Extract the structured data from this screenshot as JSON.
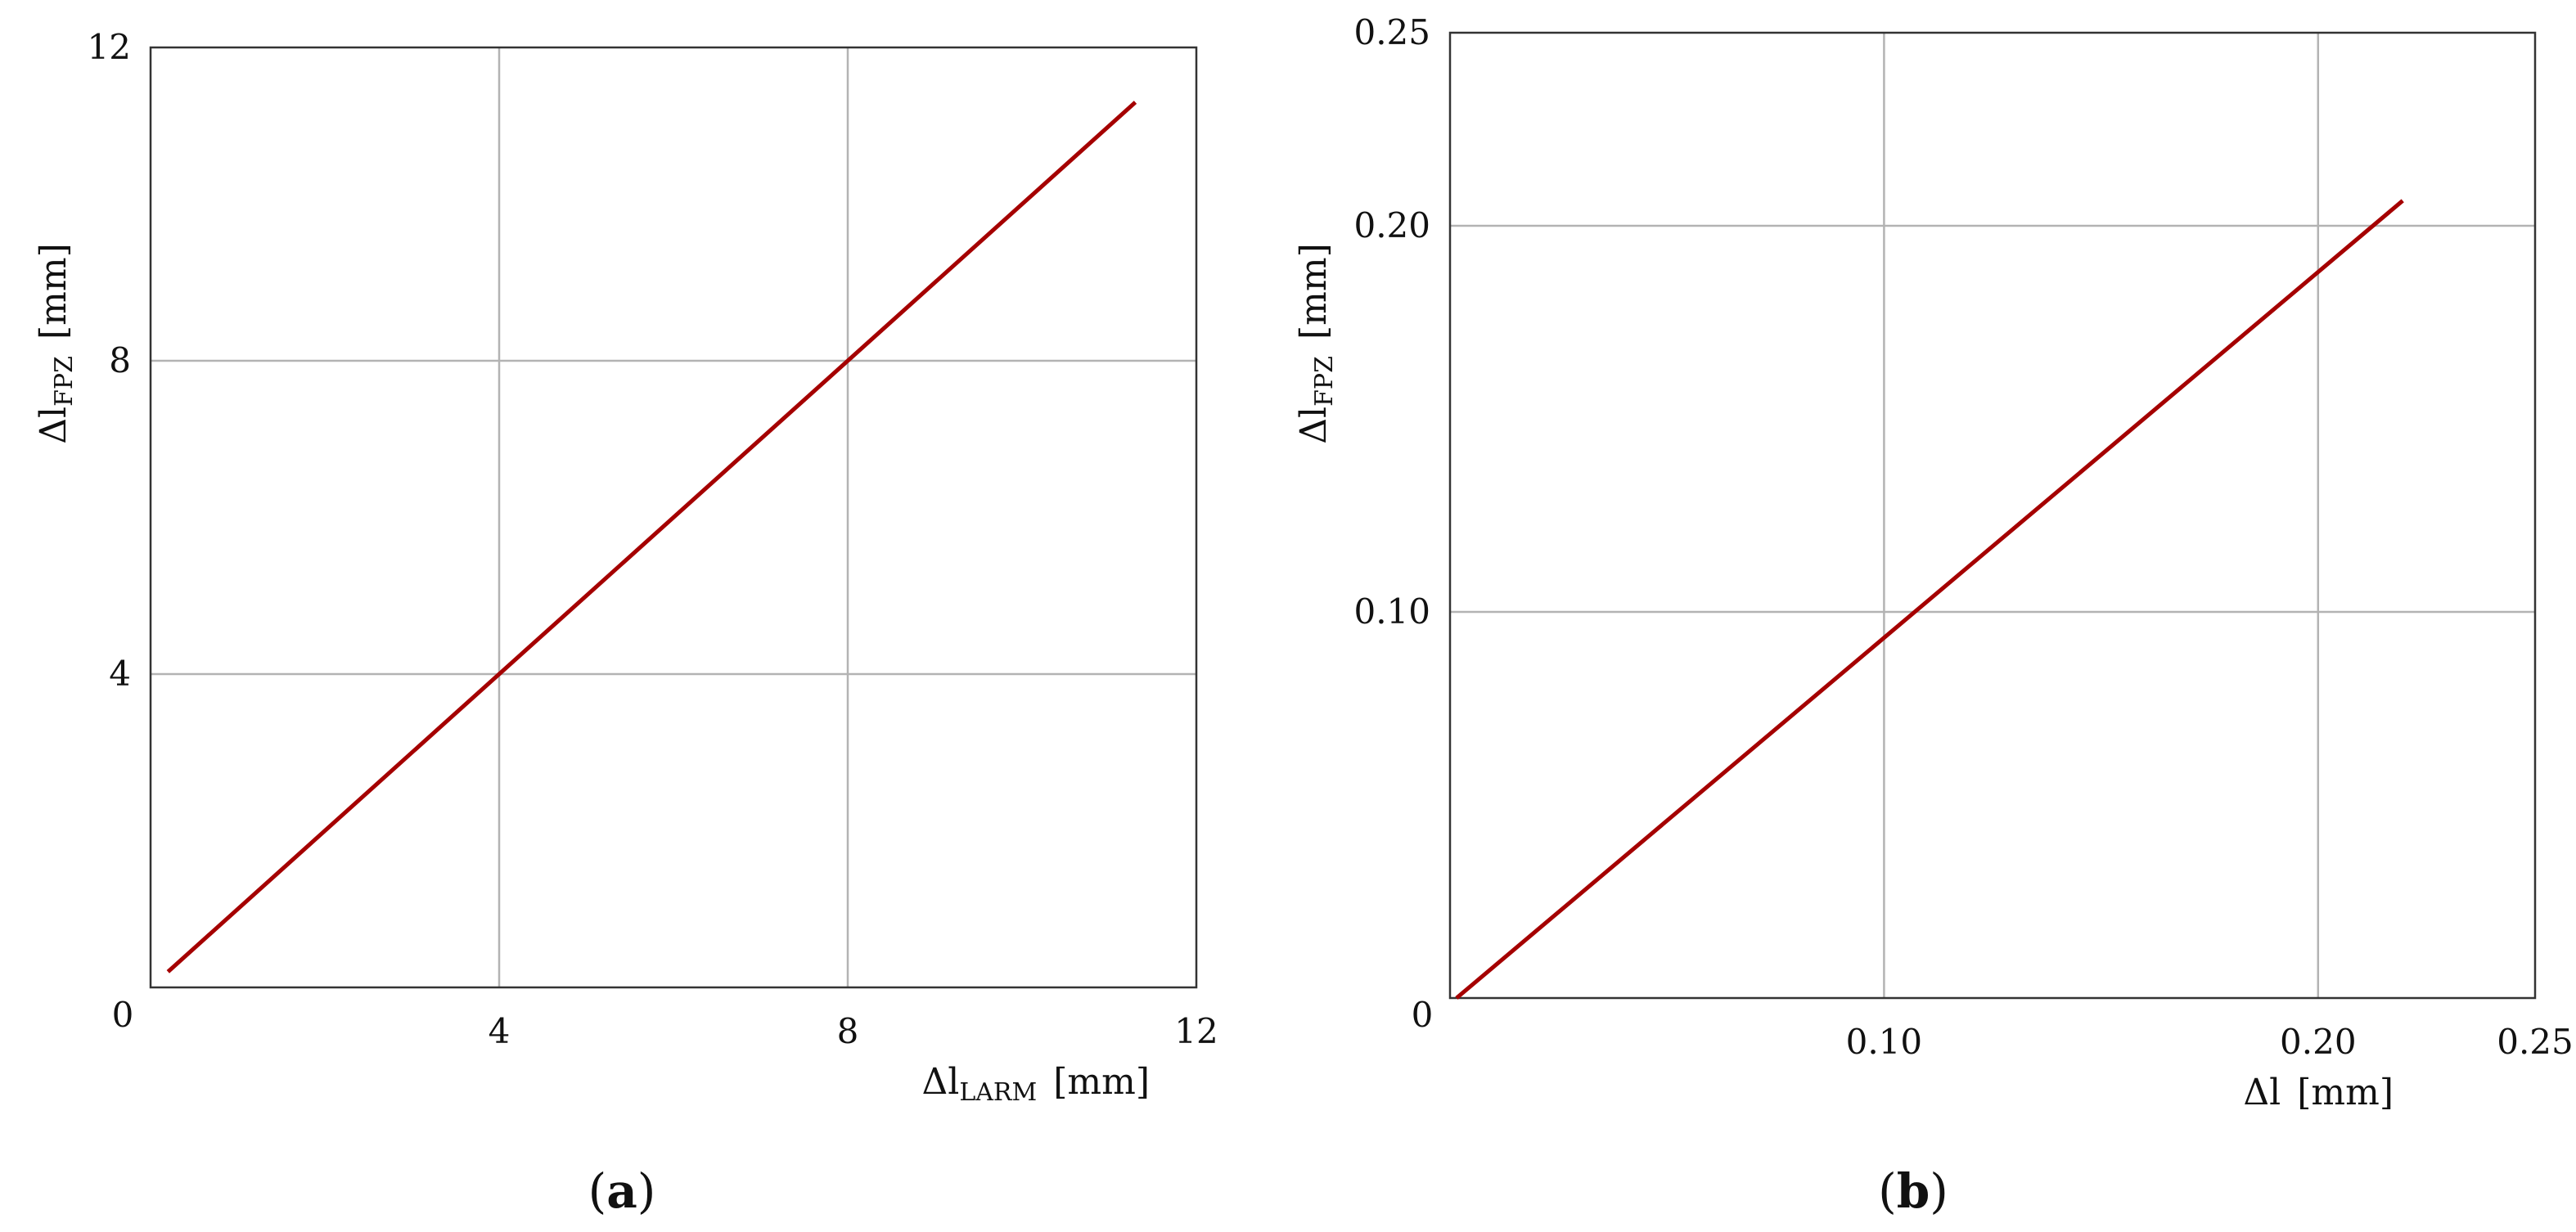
{
  "colors": {
    "series": "#a50000",
    "grid": "#b3b3b3",
    "frame": "#333333"
  },
  "chart_data": [
    {
      "id": "a",
      "type": "line",
      "panel_label": "a",
      "xlabel": {
        "symbol": "Δl",
        "subscript": "LARM",
        "unit": "[mm]"
      },
      "ylabel": {
        "symbol": "Δl",
        "subscript": "FPZ",
        "unit": "[mm]"
      },
      "xlim": [
        0,
        12
      ],
      "ylim": [
        0,
        12
      ],
      "xticks": [
        0,
        4,
        8,
        12
      ],
      "yticks": [
        0,
        4,
        8,
        12
      ],
      "xtick_labels": [
        "0",
        "4",
        "8",
        "12"
      ],
      "ytick_labels": [
        "0",
        "4",
        "8",
        "12"
      ],
      "grid": true,
      "series": [
        {
          "name": "Δl_FPZ vs Δl_LARM",
          "x": [
            0.2,
            11.3
          ],
          "y": [
            0.2,
            11.3
          ]
        }
      ]
    },
    {
      "id": "b",
      "type": "line",
      "panel_label": "b",
      "xlabel": {
        "symbol": "Δl",
        "subscript": "",
        "unit": "[mm]"
      },
      "ylabel": {
        "symbol": "Δl",
        "subscript": "FPZ",
        "unit": "[mm]"
      },
      "xlim": [
        0,
        0.25
      ],
      "ylim": [
        0,
        0.25
      ],
      "xticks": [
        0,
        0.1,
        0.2,
        0.25
      ],
      "yticks": [
        0,
        0.1,
        0.2,
        0.25
      ],
      "xtick_labels": [
        "0",
        "0.10",
        "0.20",
        "0.25"
      ],
      "ytick_labels": [
        "0",
        "0.10",
        "0.20",
        "0.25"
      ],
      "grid": true,
      "series": [
        {
          "name": "Δl_FPZ vs Δl",
          "x": [
            0.0015,
            0.2195
          ],
          "y": [
            0,
            0.2065
          ]
        }
      ]
    }
  ]
}
